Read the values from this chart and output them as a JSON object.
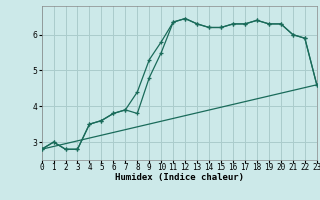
{
  "xlabel": "Humidex (Indice chaleur)",
  "bg_color": "#cce9e9",
  "grid_color": "#aacccc",
  "line_color": "#1a6b5a",
  "series1_x": [
    0,
    1,
    2,
    3,
    4,
    5,
    6,
    7,
    8,
    9,
    10,
    11,
    12,
    13,
    14,
    15,
    16,
    17,
    18,
    19,
    20,
    21,
    22,
    23
  ],
  "series1_y": [
    2.8,
    3.0,
    2.8,
    2.8,
    3.5,
    3.6,
    3.8,
    3.9,
    4.4,
    5.3,
    5.8,
    6.35,
    6.45,
    6.3,
    6.2,
    6.2,
    6.3,
    6.3,
    6.4,
    6.3,
    6.3,
    6.0,
    5.9,
    4.6
  ],
  "series2_x": [
    0,
    1,
    2,
    3,
    4,
    5,
    6,
    7,
    8,
    9,
    10,
    11,
    12,
    13,
    14,
    15,
    16,
    17,
    18,
    19,
    20,
    21,
    22,
    23
  ],
  "series2_y": [
    2.8,
    3.0,
    2.8,
    2.8,
    3.5,
    3.6,
    3.8,
    3.9,
    3.8,
    4.8,
    5.5,
    6.35,
    6.45,
    6.3,
    6.2,
    6.2,
    6.3,
    6.3,
    6.4,
    6.3,
    6.3,
    6.0,
    5.9,
    4.6
  ],
  "series3_x": [
    0,
    23
  ],
  "series3_y": [
    2.8,
    4.6
  ],
  "xlim": [
    0,
    23
  ],
  "ylim": [
    2.5,
    6.8
  ],
  "xticks": [
    0,
    1,
    2,
    3,
    4,
    5,
    6,
    7,
    8,
    9,
    10,
    11,
    12,
    13,
    14,
    15,
    16,
    17,
    18,
    19,
    20,
    21,
    22,
    23
  ],
  "yticks": [
    3,
    4,
    5,
    6
  ],
  "tick_fontsize": 5.5,
  "xlabel_fontsize": 6.5
}
